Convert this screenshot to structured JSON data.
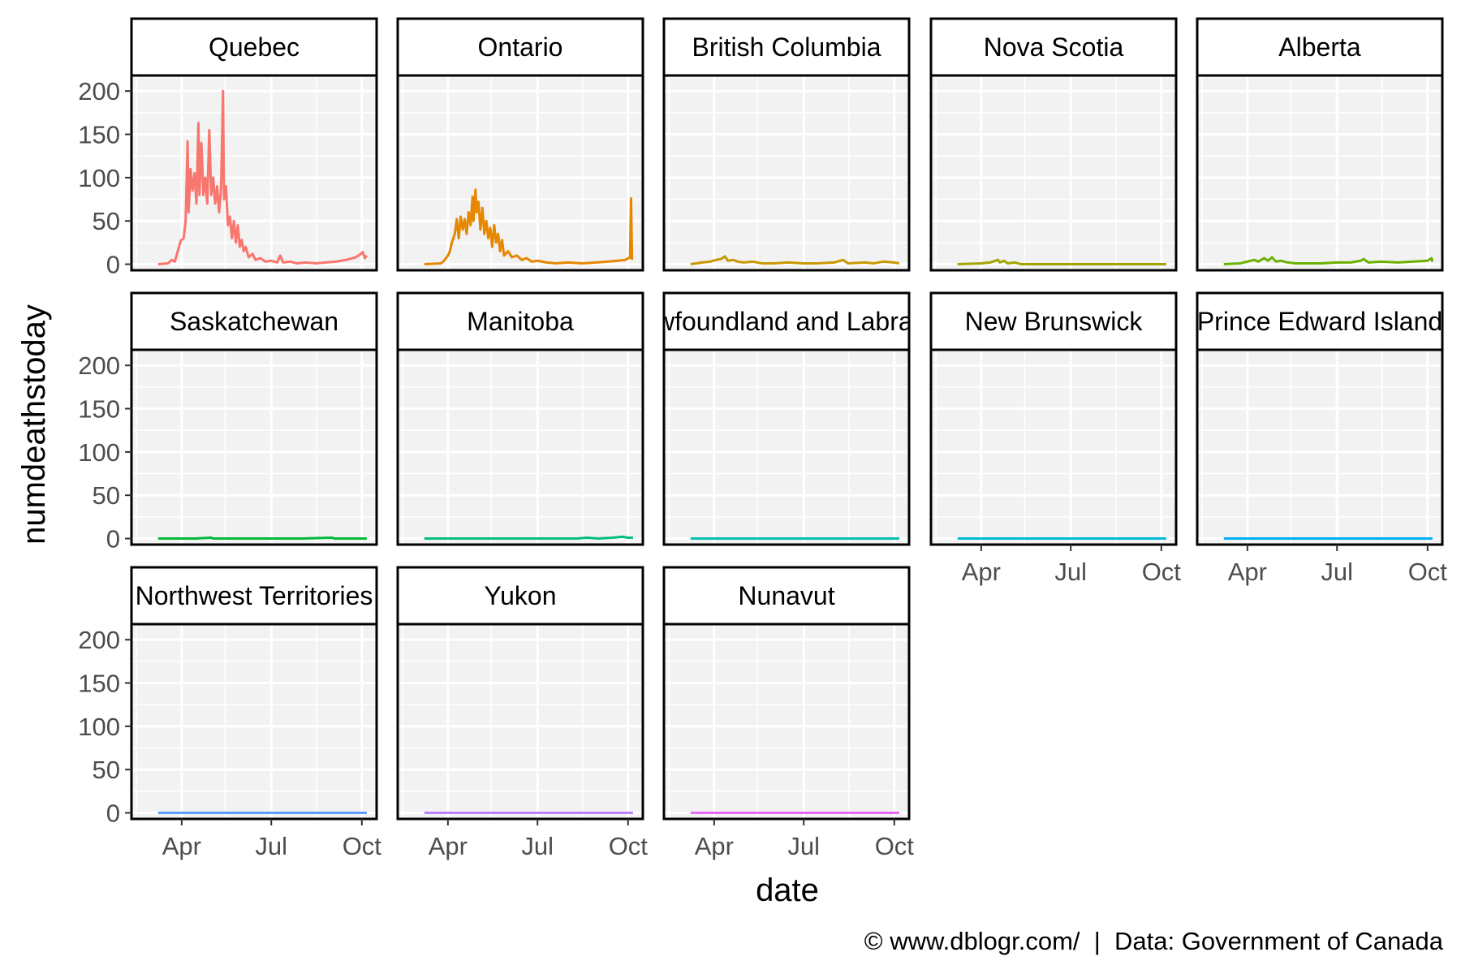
{
  "chart_data": {
    "type": "line",
    "layout": "facet-wrap",
    "xlabel": "date",
    "ylabel": "numdeathstoday",
    "x_tick_labels": [
      "Apr",
      "Jul",
      "Oct"
    ],
    "x_ticks": [
      "2020-04-01",
      "2020-07-01",
      "2020-10-01"
    ],
    "xlim": [
      "2020-02-10",
      "2020-10-16"
    ],
    "y_tick_labels": [
      "0",
      "50",
      "100",
      "150",
      "200"
    ],
    "y_ticks": [
      0,
      50,
      100,
      150,
      200
    ],
    "ylim": [
      -7,
      218
    ],
    "grid": true,
    "caption": "© www.dblogr.com/  |  Data: Government of Canada",
    "panels": [
      {
        "label": "Quebec",
        "color": "#F8766D",
        "points": [
          [
            "2020-03-08",
            0
          ],
          [
            "2020-03-18",
            1
          ],
          [
            "2020-03-22",
            5
          ],
          [
            "2020-03-25",
            3
          ],
          [
            "2020-03-28",
            15
          ],
          [
            "2020-03-31",
            27
          ],
          [
            "2020-04-03",
            30
          ],
          [
            "2020-04-05",
            50
          ],
          [
            "2020-04-07",
            142
          ],
          [
            "2020-04-08",
            60
          ],
          [
            "2020-04-10",
            110
          ],
          [
            "2020-04-12",
            85
          ],
          [
            "2020-04-14",
            105
          ],
          [
            "2020-04-16",
            70
          ],
          [
            "2020-04-18",
            163
          ],
          [
            "2020-04-19",
            80
          ],
          [
            "2020-04-21",
            140
          ],
          [
            "2020-04-23",
            80
          ],
          [
            "2020-04-25",
            100
          ],
          [
            "2020-04-27",
            70
          ],
          [
            "2020-04-29",
            155
          ],
          [
            "2020-05-01",
            80
          ],
          [
            "2020-05-03",
            100
          ],
          [
            "2020-05-05",
            70
          ],
          [
            "2020-05-07",
            90
          ],
          [
            "2020-05-09",
            60
          ],
          [
            "2020-05-11",
            88
          ],
          [
            "2020-05-13",
            200
          ],
          [
            "2020-05-14",
            75
          ],
          [
            "2020-05-16",
            90
          ],
          [
            "2020-05-18",
            45
          ],
          [
            "2020-05-20",
            55
          ],
          [
            "2020-05-22",
            30
          ],
          [
            "2020-05-24",
            50
          ],
          [
            "2020-05-26",
            25
          ],
          [
            "2020-05-28",
            45
          ],
          [
            "2020-05-30",
            20
          ],
          [
            "2020-06-01",
            28
          ],
          [
            "2020-06-03",
            15
          ],
          [
            "2020-06-05",
            20
          ],
          [
            "2020-06-08",
            8
          ],
          [
            "2020-06-12",
            12
          ],
          [
            "2020-06-15",
            5
          ],
          [
            "2020-06-20",
            7
          ],
          [
            "2020-06-25",
            3
          ],
          [
            "2020-07-01",
            4
          ],
          [
            "2020-07-07",
            2
          ],
          [
            "2020-07-10",
            10
          ],
          [
            "2020-07-13",
            2
          ],
          [
            "2020-07-20",
            3
          ],
          [
            "2020-07-27",
            1
          ],
          [
            "2020-08-05",
            2
          ],
          [
            "2020-08-15",
            1
          ],
          [
            "2020-08-25",
            2
          ],
          [
            "2020-09-05",
            3
          ],
          [
            "2020-09-15",
            5
          ],
          [
            "2020-09-25",
            8
          ],
          [
            "2020-09-30",
            12
          ],
          [
            "2020-10-02",
            14
          ],
          [
            "2020-10-04",
            7
          ],
          [
            "2020-10-06",
            10
          ]
        ]
      },
      {
        "label": "Ontario",
        "color": "#E58700",
        "points": [
          [
            "2020-03-08",
            0
          ],
          [
            "2020-03-25",
            1
          ],
          [
            "2020-03-28",
            4
          ],
          [
            "2020-04-01",
            10
          ],
          [
            "2020-04-03",
            15
          ],
          [
            "2020-04-05",
            25
          ],
          [
            "2020-04-08",
            35
          ],
          [
            "2020-04-10",
            52
          ],
          [
            "2020-04-12",
            30
          ],
          [
            "2020-04-14",
            55
          ],
          [
            "2020-04-16",
            40
          ],
          [
            "2020-04-18",
            52
          ],
          [
            "2020-04-20",
            35
          ],
          [
            "2020-04-22",
            60
          ],
          [
            "2020-04-24",
            45
          ],
          [
            "2020-04-26",
            78
          ],
          [
            "2020-04-27",
            50
          ],
          [
            "2020-04-29",
            86
          ],
          [
            "2020-04-30",
            60
          ],
          [
            "2020-05-02",
            72
          ],
          [
            "2020-05-04",
            40
          ],
          [
            "2020-05-06",
            65
          ],
          [
            "2020-05-08",
            35
          ],
          [
            "2020-05-10",
            50
          ],
          [
            "2020-05-12",
            30
          ],
          [
            "2020-05-14",
            42
          ],
          [
            "2020-05-16",
            20
          ],
          [
            "2020-05-18",
            45
          ],
          [
            "2020-05-20",
            25
          ],
          [
            "2020-05-22",
            35
          ],
          [
            "2020-05-24",
            15
          ],
          [
            "2020-05-26",
            28
          ],
          [
            "2020-05-28",
            10
          ],
          [
            "2020-06-01",
            15
          ],
          [
            "2020-06-05",
            8
          ],
          [
            "2020-06-10",
            10
          ],
          [
            "2020-06-15",
            5
          ],
          [
            "2020-06-20",
            7
          ],
          [
            "2020-06-25",
            3
          ],
          [
            "2020-07-01",
            4
          ],
          [
            "2020-07-10",
            2
          ],
          [
            "2020-07-20",
            1
          ],
          [
            "2020-08-01",
            2
          ],
          [
            "2020-08-15",
            1
          ],
          [
            "2020-08-30",
            2
          ],
          [
            "2020-09-10",
            3
          ],
          [
            "2020-09-20",
            4
          ],
          [
            "2020-09-28",
            5
          ],
          [
            "2020-10-03",
            8
          ],
          [
            "2020-10-04",
            76
          ],
          [
            "2020-10-05",
            5
          ]
        ]
      },
      {
        "label": "British Columbia",
        "color": "#C99800",
        "points": [
          [
            "2020-03-08",
            0
          ],
          [
            "2020-03-20",
            2
          ],
          [
            "2020-03-28",
            3
          ],
          [
            "2020-04-03",
            5
          ],
          [
            "2020-04-08",
            6
          ],
          [
            "2020-04-12",
            9
          ],
          [
            "2020-04-15",
            4
          ],
          [
            "2020-04-20",
            5
          ],
          [
            "2020-04-25",
            3
          ],
          [
            "2020-05-01",
            2
          ],
          [
            "2020-05-10",
            3
          ],
          [
            "2020-05-20",
            1
          ],
          [
            "2020-06-01",
            1
          ],
          [
            "2020-06-15",
            2
          ],
          [
            "2020-07-01",
            1
          ],
          [
            "2020-07-15",
            1
          ],
          [
            "2020-08-01",
            2
          ],
          [
            "2020-08-10",
            5
          ],
          [
            "2020-08-15",
            1
          ],
          [
            "2020-09-01",
            2
          ],
          [
            "2020-09-10",
            1
          ],
          [
            "2020-09-20",
            3
          ],
          [
            "2020-10-01",
            2
          ],
          [
            "2020-10-06",
            1
          ]
        ]
      },
      {
        "label": "Nova Scotia",
        "color": "#A3A500",
        "points": [
          [
            "2020-03-08",
            0
          ],
          [
            "2020-04-01",
            1
          ],
          [
            "2020-04-10",
            2
          ],
          [
            "2020-04-18",
            5
          ],
          [
            "2020-04-20",
            2
          ],
          [
            "2020-04-24",
            4
          ],
          [
            "2020-04-28",
            1
          ],
          [
            "2020-05-05",
            2
          ],
          [
            "2020-05-12",
            0
          ],
          [
            "2020-06-01",
            0
          ],
          [
            "2020-07-01",
            0
          ],
          [
            "2020-08-01",
            0
          ],
          [
            "2020-09-01",
            0
          ],
          [
            "2020-10-06",
            0
          ]
        ]
      },
      {
        "label": "Alberta",
        "color": "#6BB100",
        "points": [
          [
            "2020-03-08",
            0
          ],
          [
            "2020-03-25",
            1
          ],
          [
            "2020-04-01",
            3
          ],
          [
            "2020-04-08",
            5
          ],
          [
            "2020-04-12",
            3
          ],
          [
            "2020-04-18",
            7
          ],
          [
            "2020-04-22",
            4
          ],
          [
            "2020-04-26",
            8
          ],
          [
            "2020-04-30",
            3
          ],
          [
            "2020-05-05",
            4
          ],
          [
            "2020-05-12",
            2
          ],
          [
            "2020-05-20",
            1
          ],
          [
            "2020-06-01",
            1
          ],
          [
            "2020-06-15",
            1
          ],
          [
            "2020-07-01",
            2
          ],
          [
            "2020-07-15",
            2
          ],
          [
            "2020-07-25",
            4
          ],
          [
            "2020-07-28",
            6
          ],
          [
            "2020-08-02",
            2
          ],
          [
            "2020-08-15",
            3
          ],
          [
            "2020-09-01",
            2
          ],
          [
            "2020-09-15",
            3
          ],
          [
            "2020-10-01",
            4
          ],
          [
            "2020-10-05",
            7
          ],
          [
            "2020-10-06",
            3
          ]
        ]
      },
      {
        "label": "Saskatchewan",
        "color": "#00BA38",
        "points": [
          [
            "2020-03-08",
            0
          ],
          [
            "2020-04-15",
            0
          ],
          [
            "2020-05-01",
            1
          ],
          [
            "2020-05-03",
            0
          ],
          [
            "2020-06-01",
            0
          ],
          [
            "2020-07-01",
            0
          ],
          [
            "2020-08-01",
            0
          ],
          [
            "2020-09-01",
            1
          ],
          [
            "2020-09-03",
            0
          ],
          [
            "2020-10-06",
            0
          ]
        ]
      },
      {
        "label": "Manitoba",
        "color": "#00BF7D",
        "points": [
          [
            "2020-03-08",
            0
          ],
          [
            "2020-04-15",
            0
          ],
          [
            "2020-05-15",
            0
          ],
          [
            "2020-06-15",
            0
          ],
          [
            "2020-08-10",
            0
          ],
          [
            "2020-08-20",
            1
          ],
          [
            "2020-09-01",
            0
          ],
          [
            "2020-09-15",
            1
          ],
          [
            "2020-09-25",
            2
          ],
          [
            "2020-10-01",
            1
          ],
          [
            "2020-10-06",
            1
          ]
        ]
      },
      {
        "label": "Newfoundland and Labrador",
        "color": "#00C0AF",
        "points": [
          [
            "2020-03-08",
            0
          ],
          [
            "2020-10-06",
            0
          ]
        ]
      },
      {
        "label": "New Brunswick",
        "color": "#00BCD8",
        "points": [
          [
            "2020-03-08",
            0
          ],
          [
            "2020-10-06",
            0
          ]
        ]
      },
      {
        "label": "Prince Edward Island",
        "color": "#00B0F6",
        "points": [
          [
            "2020-03-08",
            0
          ],
          [
            "2020-10-06",
            0
          ]
        ]
      },
      {
        "label": "Northwest Territories",
        "color": "#619CFF",
        "points": [
          [
            "2020-03-08",
            0
          ],
          [
            "2020-10-06",
            0
          ]
        ]
      },
      {
        "label": "Yukon",
        "color": "#B983FF",
        "points": [
          [
            "2020-03-08",
            0
          ],
          [
            "2020-10-06",
            0
          ]
        ]
      },
      {
        "label": "Nunavut",
        "color": "#E76BF3",
        "points": [
          [
            "2020-03-08",
            0
          ],
          [
            "2020-10-06",
            0
          ]
        ]
      }
    ]
  }
}
